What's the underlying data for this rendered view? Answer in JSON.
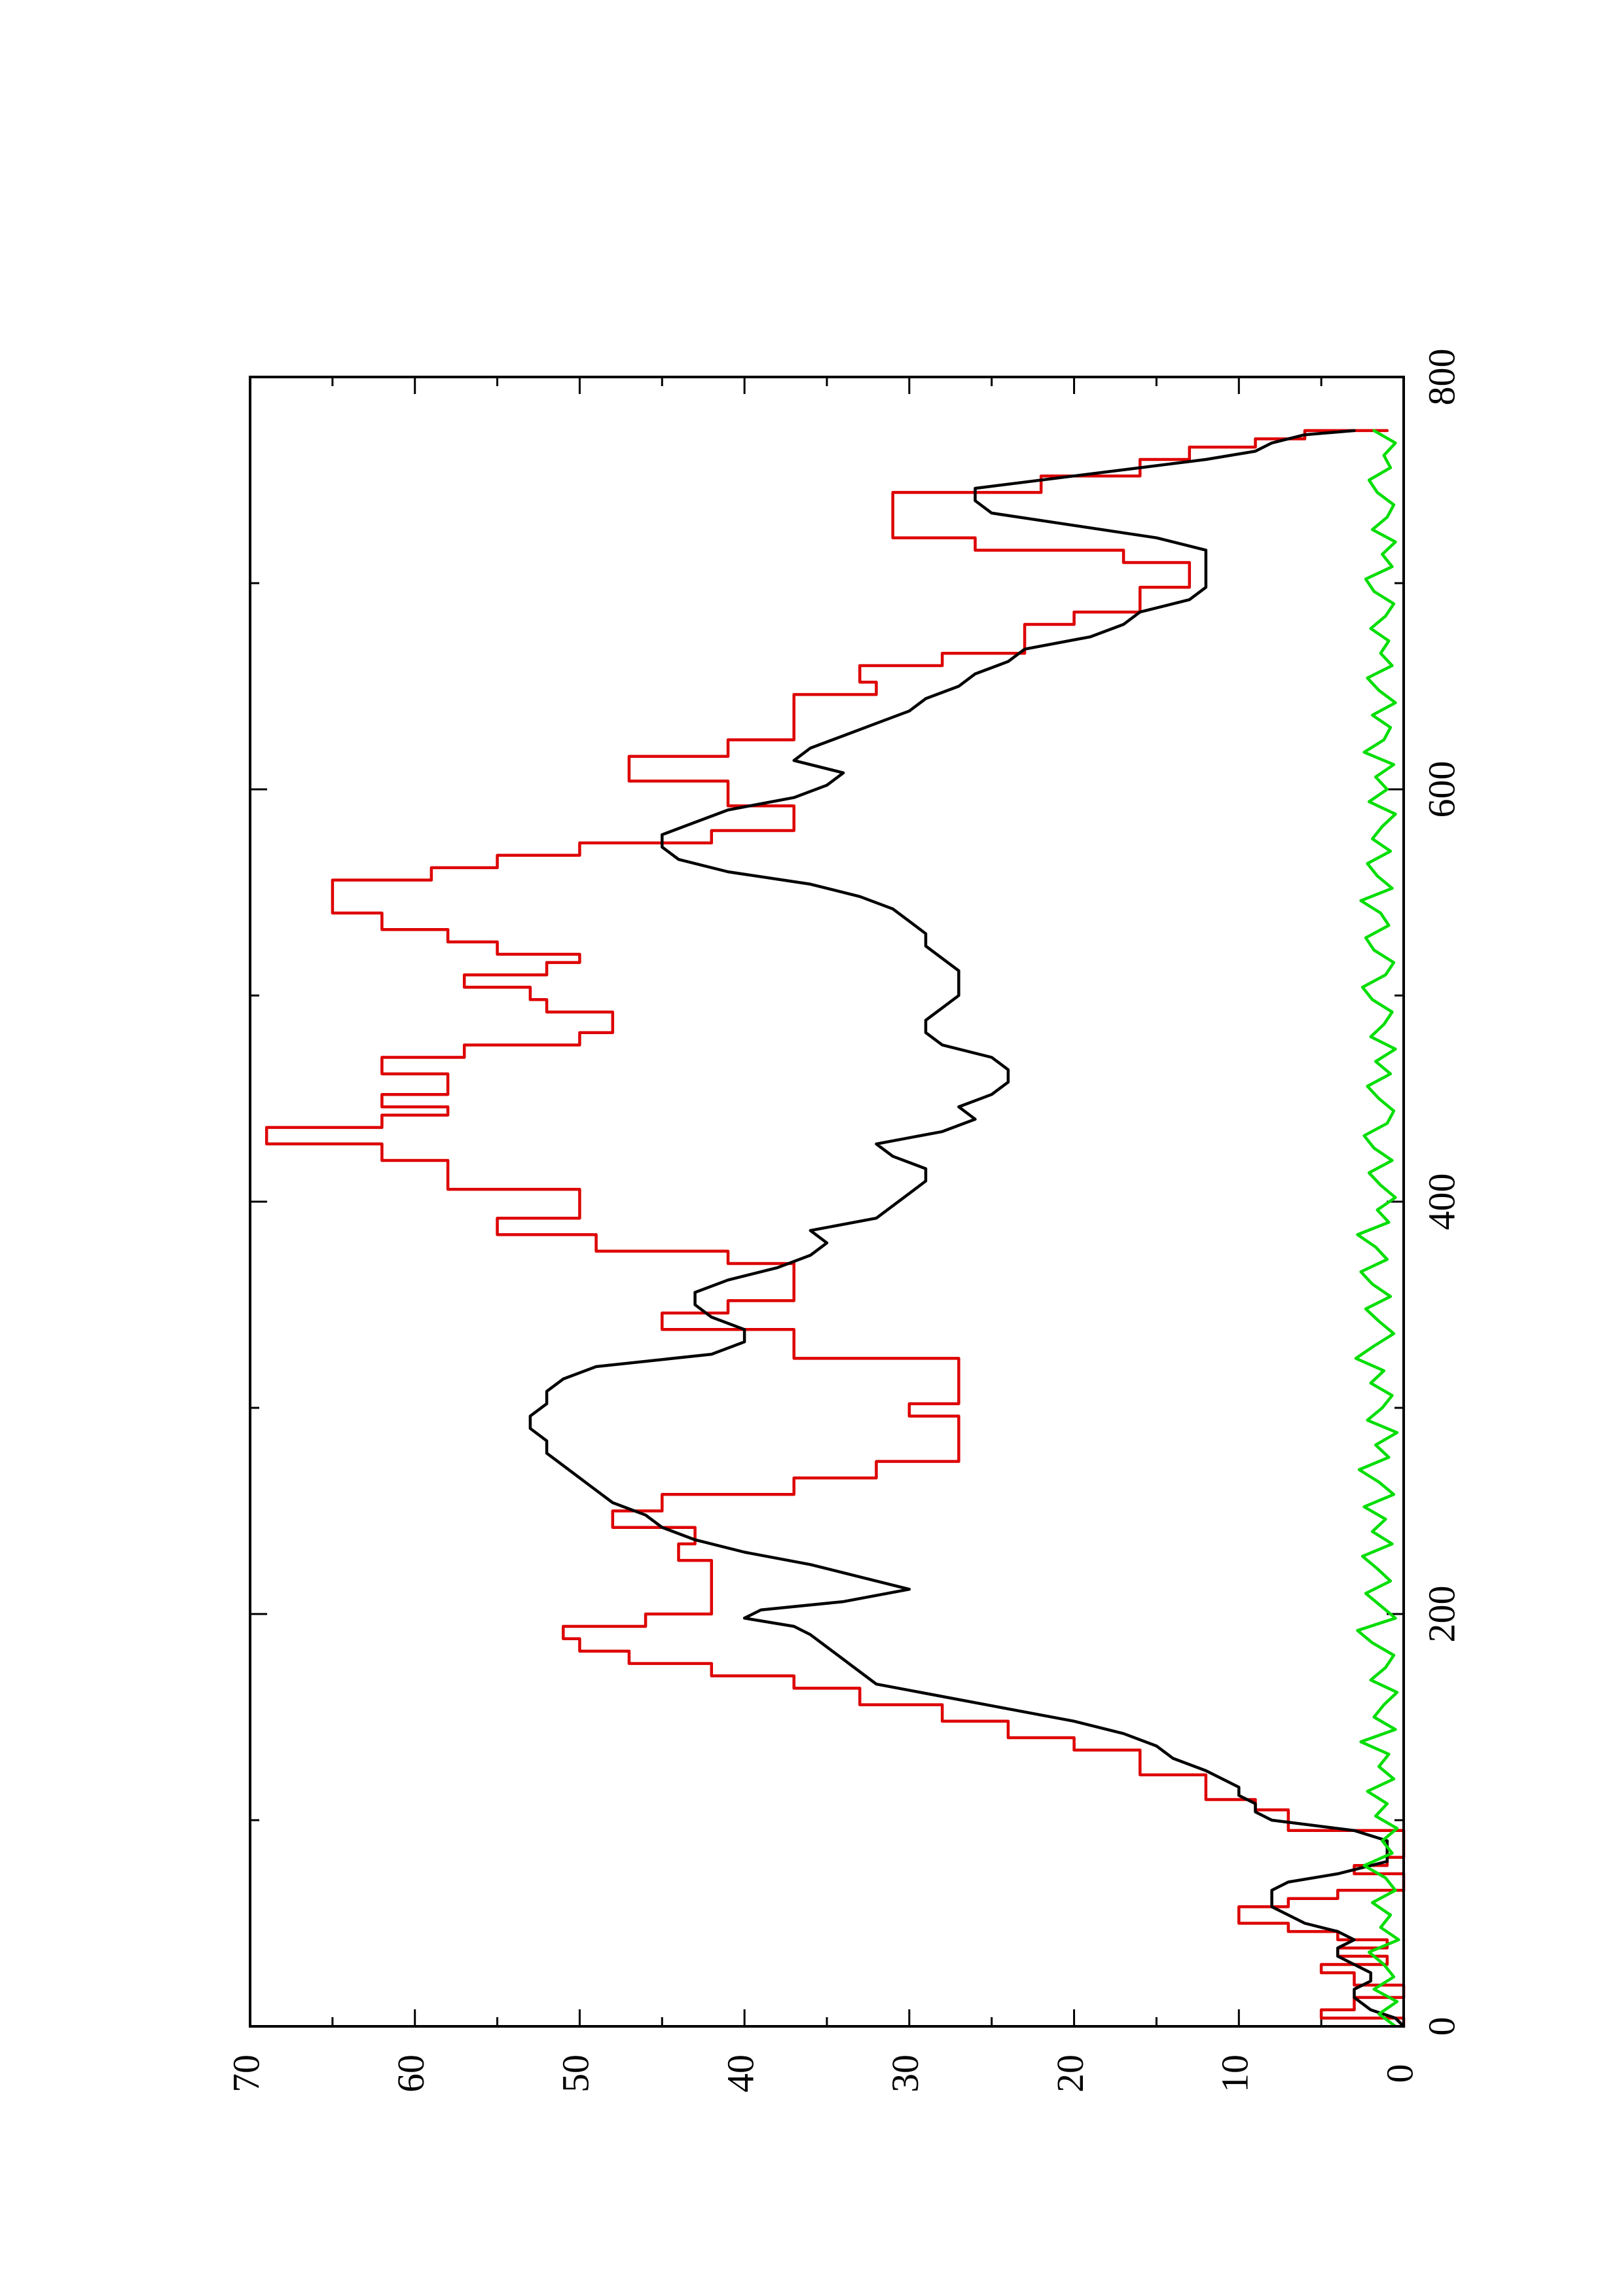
{
  "chart_data": {
    "type": "line",
    "orientation": "rotated-90-ccw",
    "title": "",
    "xlabel": "",
    "ylabel": "",
    "xlim": [
      0,
      800
    ],
    "ylim": [
      0,
      70
    ],
    "x_ticks": [
      0,
      200,
      400,
      600,
      800
    ],
    "x_ticks_minor": [
      100,
      300,
      500,
      700
    ],
    "y_ticks": [
      0,
      10,
      20,
      30,
      40,
      50,
      60,
      70
    ],
    "y_ticks_minor": [
      5,
      15,
      25,
      35,
      45,
      55,
      65
    ],
    "grid": false,
    "legend": "none",
    "series": [
      {
        "color": "#dd0000",
        "style": "step",
        "x": [
          0,
          4,
          8,
          14,
          20,
          26,
          30,
          34,
          38,
          42,
          46,
          50,
          54,
          58,
          62,
          66,
          70,
          74,
          78,
          82,
          86,
          90,
          95,
          100,
          105,
          110,
          116,
          122,
          128,
          134,
          140,
          148,
          156,
          164,
          170,
          176,
          182,
          188,
          194,
          200,
          210,
          218,
          226,
          234,
          242,
          250,
          258,
          266,
          274,
          282,
          290,
          296,
          302,
          310,
          318,
          324,
          330,
          338,
          346,
          352,
          358,
          364,
          370,
          376,
          384,
          392,
          400,
          406,
          412,
          420,
          428,
          436,
          442,
          446,
          452,
          458,
          462,
          470,
          476,
          482,
          488,
          492,
          498,
          504,
          510,
          516,
          520,
          526,
          532,
          540,
          548,
          556,
          562,
          568,
          574,
          580,
          586,
          592,
          598,
          604,
          610,
          616,
          624,
          632,
          640,
          646,
          652,
          660,
          666,
          672,
          680,
          686,
          692,
          698,
          704,
          710,
          716,
          722,
          728,
          736,
          744,
          752,
          760,
          766,
          770,
          774
        ],
        "y": [
          0,
          5,
          3,
          0,
          3,
          5,
          1,
          4,
          1,
          4,
          7,
          10,
          10,
          7,
          4,
          0,
          0,
          3,
          1,
          0,
          0,
          0,
          7,
          7,
          9,
          12,
          12,
          16,
          16,
          20,
          24,
          28,
          33,
          37,
          42,
          47,
          50,
          51,
          46,
          42,
          42,
          42,
          44,
          43,
          48,
          45,
          37,
          32,
          27,
          27,
          27,
          30,
          27,
          27,
          27,
          37,
          37,
          45,
          41,
          37,
          37,
          37,
          41,
          49,
          55,
          50,
          50,
          58,
          58,
          62,
          69,
          62,
          58,
          62,
          58,
          58,
          62,
          57,
          50,
          48,
          48,
          52,
          53,
          57,
          52,
          50,
          55,
          58,
          62,
          65,
          65,
          59,
          55,
          50,
          42,
          37,
          37,
          41,
          41,
          47,
          47,
          41,
          37,
          37,
          37,
          32,
          33,
          28,
          23,
          23,
          20,
          16,
          16,
          13,
          13,
          17,
          26,
          31,
          31,
          31,
          22,
          16,
          13,
          9,
          6,
          1
        ]
      },
      {
        "color": "#000000",
        "style": "line",
        "x": [
          0,
          4,
          8,
          14,
          18,
          22,
          26,
          30,
          34,
          38,
          42,
          46,
          50,
          54,
          58,
          62,
          66,
          70,
          74,
          80,
          86,
          90,
          95,
          100,
          104,
          108,
          112,
          116,
          120,
          124,
          130,
          136,
          142,
          148,
          154,
          160,
          166,
          172,
          178,
          184,
          190,
          194,
          198,
          202,
          206,
          212,
          218,
          224,
          230,
          236,
          242,
          248,
          254,
          260,
          266,
          272,
          278,
          284,
          290,
          296,
          302,
          308,
          314,
          320,
          326,
          332,
          338,
          344,
          350,
          356,
          362,
          368,
          374,
          380,
          386,
          392,
          398,
          404,
          410,
          416,
          422,
          428,
          434,
          440,
          446,
          452,
          458,
          464,
          470,
          476,
          482,
          488,
          494,
          500,
          506,
          512,
          518,
          524,
          530,
          536,
          542,
          548,
          554,
          560,
          566,
          572,
          578,
          584,
          590,
          596,
          602,
          608,
          614,
          620,
          626,
          632,
          638,
          644,
          650,
          656,
          662,
          668,
          674,
          680,
          686,
          692,
          698,
          704,
          710,
          716,
          722,
          728,
          734,
          740,
          746,
          752,
          756,
          760,
          764,
          768,
          772,
          774
        ],
        "y": [
          0,
          0.5,
          2,
          3,
          3,
          2,
          2,
          3,
          4,
          4,
          3,
          4,
          6,
          7,
          8,
          8,
          8,
          7,
          4,
          1,
          1,
          1,
          3,
          8,
          9,
          9,
          10,
          10,
          11,
          12,
          14,
          15,
          17,
          20,
          24,
          28,
          32,
          33,
          34,
          35,
          36,
          37,
          40,
          39,
          34,
          30,
          33,
          36,
          40,
          43,
          45,
          46,
          48,
          49,
          50,
          51,
          52,
          52,
          53,
          53,
          52,
          52,
          51,
          49,
          42,
          40,
          40,
          42,
          43,
          43,
          41,
          38,
          36,
          35,
          36,
          32,
          31,
          30,
          29,
          29,
          31,
          32,
          28,
          26,
          27,
          25,
          24,
          24,
          25,
          28,
          29,
          29,
          28,
          27,
          27,
          27,
          28,
          29,
          29,
          30,
          31,
          33,
          36,
          41,
          44,
          45,
          45,
          43,
          41,
          37,
          35,
          34,
          37,
          36,
          34,
          32,
          30,
          29,
          27,
          26,
          24,
          23,
          19,
          17,
          16,
          13,
          12,
          12,
          12,
          12,
          15,
          20,
          25,
          26,
          26,
          20,
          16,
          12,
          9,
          8,
          6,
          3
        ]
      },
      {
        "color": "#00dd00",
        "style": "line",
        "x": [
          0,
          6,
          12,
          18,
          24,
          30,
          36,
          42,
          48,
          54,
          60,
          66,
          72,
          78,
          84,
          90,
          96,
          102,
          108,
          114,
          120,
          126,
          132,
          138,
          144,
          150,
          156,
          162,
          168,
          174,
          180,
          186,
          192,
          198,
          204,
          210,
          216,
          222,
          228,
          234,
          240,
          246,
          252,
          258,
          264,
          270,
          276,
          282,
          288,
          294,
          300,
          306,
          312,
          318,
          324,
          330,
          336,
          342,
          348,
          354,
          360,
          366,
          372,
          378,
          384,
          390,
          396,
          402,
          408,
          414,
          420,
          426,
          432,
          438,
          444,
          450,
          456,
          462,
          468,
          474,
          480,
          486,
          492,
          498,
          504,
          510,
          516,
          522,
          528,
          534,
          540,
          546,
          552,
          558,
          564,
          570,
          576,
          582,
          588,
          594,
          600,
          606,
          612,
          618,
          624,
          630,
          636,
          642,
          648,
          654,
          660,
          666,
          672,
          678,
          684,
          690,
          696,
          702,
          708,
          714,
          720,
          726,
          732,
          738,
          744,
          750,
          756,
          762,
          768,
          774
        ],
        "y": [
          0.5,
          1.5,
          0.4,
          1.8,
          0.6,
          1.2,
          2.1,
          0.3,
          1.4,
          0.8,
          1.9,
          0.5,
          1.1,
          2.4,
          0.7,
          1.3,
          0.4,
          1.7,
          1.0,
          2.2,
          0.6,
          1.5,
          0.9,
          2.6,
          0.5,
          1.8,
          1.2,
          0.4,
          2.0,
          1.1,
          0.6,
          1.9,
          2.8,
          0.5,
          1.4,
          2.3,
          0.8,
          1.6,
          2.5,
          0.7,
          1.9,
          1.1,
          2.4,
          0.6,
          1.5,
          2.7,
          0.9,
          1.7,
          0.4,
          2.2,
          1.3,
          0.7,
          2.0,
          1.2,
          2.9,
          1.8,
          0.6,
          1.5,
          2.3,
          0.8,
          1.9,
          2.6,
          1.0,
          1.7,
          2.8,
          0.9,
          1.6,
          0.5,
          1.4,
          2.1,
          0.7,
          1.8,
          2.4,
          1.0,
          0.6,
          1.5,
          2.2,
          0.8,
          1.7,
          0.5,
          2.0,
          1.2,
          0.7,
          1.9,
          2.5,
          1.1,
          0.6,
          1.8,
          2.3,
          0.9,
          1.4,
          2.6,
          0.7,
          1.6,
          2.2,
          0.8,
          1.9,
          1.3,
          0.5,
          2.1,
          1.0,
          1.7,
          0.6,
          2.4,
          1.2,
          0.8,
          1.9,
          0.5,
          1.5,
          2.2,
          0.7,
          1.4,
          0.9,
          2.0,
          1.1,
          0.6,
          1.8,
          2.3,
          0.7,
          1.3,
          0.5,
          1.9,
          1.0,
          0.6,
          1.6,
          2.1,
          0.8,
          1.2,
          0.5,
          1.8
        ]
      }
    ]
  }
}
